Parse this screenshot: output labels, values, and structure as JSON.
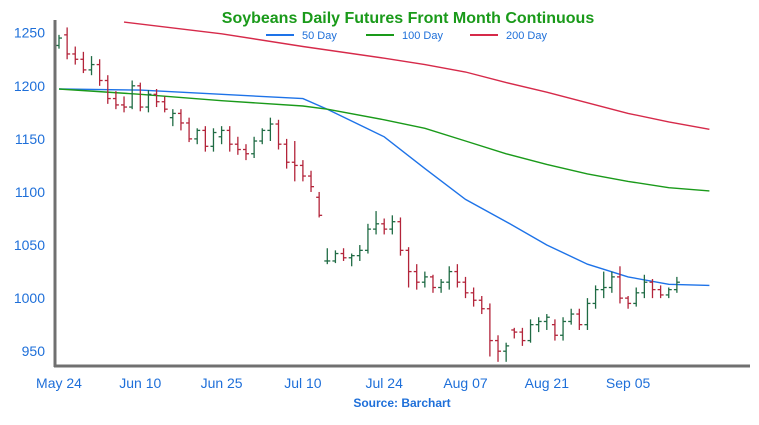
{
  "chart_data": {
    "type": "ohlc",
    "title": "Soybeans Daily Futures Front Month Continuous",
    "source": "Source: Barchart",
    "colors": {
      "title": "#1a9a1a",
      "axis_labels": "#1e6fd9",
      "source": "#1e6fd9",
      "up_bar": "#1f6b44",
      "down_bar": "#b3243a",
      "ma50": "#1e73e8",
      "ma100": "#1a9a1a",
      "ma200": "#d62a4a",
      "axis": "#707070"
    },
    "ylim": [
      937,
      1262
    ],
    "yticks": [
      950,
      1000,
      1050,
      1100,
      1150,
      1200,
      1250
    ],
    "x_range": [
      0,
      82
    ],
    "xticks": [
      {
        "label": "May 24",
        "x": 0
      },
      {
        "label": "Jun 10",
        "x": 10
      },
      {
        "label": "Jun 25",
        "x": 20
      },
      {
        "label": "Jul 10",
        "x": 30
      },
      {
        "label": "Jul 24",
        "x": 40
      },
      {
        "label": "Aug 07",
        "x": 50
      },
      {
        "label": "Aug 21",
        "x": 60
      },
      {
        "label": "Sep 05",
        "x": 70
      }
    ],
    "legend": {
      "placement": "top-center",
      "items": [
        {
          "label": "50 Day",
          "color": "#1e73e8",
          "key": "ma50"
        },
        {
          "label": "100 Day",
          "color": "#1a9a1a",
          "key": "ma100"
        },
        {
          "label": "200 Day",
          "color": "#d62a4a",
          "key": "ma200"
        }
      ]
    },
    "ohlc": [
      [
        1238,
        1248,
        1235,
        1245
      ],
      [
        1248,
        1255,
        1225,
        1230
      ],
      [
        1230,
        1237,
        1220,
        1225
      ],
      [
        1225,
        1232,
        1212,
        1215
      ],
      [
        1215,
        1228,
        1210,
        1220
      ],
      [
        1220,
        1225,
        1200,
        1205
      ],
      [
        1205,
        1210,
        1183,
        1188
      ],
      [
        1188,
        1195,
        1178,
        1182
      ],
      [
        1182,
        1190,
        1175,
        1180
      ],
      [
        1180,
        1205,
        1178,
        1200
      ],
      [
        1200,
        1203,
        1176,
        1180
      ],
      [
        1180,
        1196,
        1175,
        1192
      ],
      [
        1192,
        1197,
        1180,
        1185
      ],
      [
        1185,
        1190,
        1175,
        1178
      ],
      [
        1170,
        1178,
        1162,
        1174
      ],
      [
        1174,
        1178,
        1158,
        1165
      ],
      [
        1165,
        1170,
        1147,
        1150
      ],
      [
        1150,
        1160,
        1145,
        1158
      ],
      [
        1158,
        1162,
        1138,
        1143
      ],
      [
        1143,
        1160,
        1138,
        1156
      ],
      [
        1152,
        1162,
        1145,
        1158
      ],
      [
        1158,
        1162,
        1138,
        1145
      ],
      [
        1145,
        1152,
        1135,
        1140
      ],
      [
        1140,
        1145,
        1130,
        1136
      ],
      [
        1136,
        1152,
        1132,
        1148
      ],
      [
        1148,
        1160,
        1145,
        1158
      ],
      [
        1158,
        1170,
        1148,
        1164
      ],
      [
        1164,
        1168,
        1140,
        1145
      ],
      [
        1145,
        1150,
        1122,
        1128
      ],
      [
        1128,
        1148,
        1110,
        1125
      ],
      [
        1125,
        1130,
        1110,
        1115
      ],
      [
        1115,
        1120,
        1100,
        1105
      ],
      [
        1095,
        1100,
        1076,
        1078
      ],
      [
        1035,
        1047,
        1032,
        1035
      ],
      [
        1035,
        1045,
        1033,
        1042
      ],
      [
        1042,
        1047,
        1035,
        1038
      ],
      [
        1038,
        1042,
        1030,
        1040
      ],
      [
        1040,
        1050,
        1035,
        1045
      ],
      [
        1045,
        1070,
        1042,
        1065
      ],
      [
        1065,
        1082,
        1060,
        1070
      ],
      [
        1070,
        1075,
        1060,
        1065
      ],
      [
        1065,
        1078,
        1060,
        1072
      ],
      [
        1072,
        1076,
        1040,
        1045
      ],
      [
        1045,
        1048,
        1010,
        1025
      ],
      [
        1025,
        1032,
        1008,
        1015
      ],
      [
        1015,
        1025,
        1010,
        1020
      ],
      [
        1020,
        1022,
        1005,
        1010
      ],
      [
        1010,
        1018,
        1005,
        1015
      ],
      [
        1015,
        1030,
        1008,
        1025
      ],
      [
        1025,
        1032,
        1010,
        1015
      ],
      [
        1015,
        1020,
        1000,
        1005
      ],
      [
        1005,
        1010,
        992,
        998
      ],
      [
        998,
        1002,
        985,
        990
      ],
      [
        990,
        995,
        945,
        960
      ],
      [
        960,
        965,
        940,
        950
      ],
      [
        950,
        958,
        940,
        955
      ],
      [
        970,
        972,
        962,
        968
      ],
      [
        968,
        972,
        955,
        960
      ],
      [
        960,
        980,
        958,
        975
      ],
      [
        975,
        982,
        968,
        978
      ],
      [
        978,
        985,
        970,
        982
      ],
      [
        975,
        980,
        960,
        965
      ],
      [
        965,
        982,
        960,
        978
      ],
      [
        978,
        990,
        975,
        985
      ],
      [
        985,
        990,
        970,
        975
      ],
      [
        975,
        1000,
        970,
        995
      ],
      [
        995,
        1012,
        990,
        1008
      ],
      [
        1008,
        1025,
        1000,
        1010
      ],
      [
        1010,
        1025,
        1005,
        1020
      ],
      [
        1020,
        1030,
        995,
        1000
      ],
      [
        1000,
        1002,
        990,
        995
      ],
      [
        995,
        1010,
        992,
        1005
      ],
      [
        1005,
        1022,
        1000,
        1015
      ],
      [
        1015,
        1018,
        1000,
        1008
      ],
      [
        1008,
        1012,
        1000,
        1003
      ],
      [
        1003,
        1010,
        1000,
        1008
      ],
      [
        1008,
        1020,
        1005,
        1015
      ]
    ],
    "series": [
      {
        "name": "50 Day",
        "key": "ma50",
        "x": [
          0,
          10,
          20,
          30,
          33,
          40,
          45,
          50,
          55,
          60,
          65,
          70,
          75,
          80
        ],
        "values": [
          1197,
          1196,
          1192,
          1188,
          1178,
          1152,
          1122,
          1093,
          1072,
          1050,
          1032,
          1020,
          1013,
          1012
        ]
      },
      {
        "name": "100 Day",
        "key": "ma100",
        "x": [
          0,
          10,
          20,
          30,
          33,
          40,
          45,
          50,
          55,
          60,
          65,
          70,
          75,
          80
        ],
        "values": [
          1197,
          1192,
          1186,
          1181,
          1178,
          1168,
          1160,
          1148,
          1136,
          1126,
          1117,
          1110,
          1104,
          1101
        ]
      },
      {
        "name": "200 Day",
        "key": "ma200",
        "x": [
          8,
          20,
          30,
          40,
          45,
          50,
          55,
          60,
          65,
          70,
          75,
          80
        ],
        "values": [
          1260,
          1249,
          1237,
          1226,
          1220,
          1213,
          1203,
          1194,
          1184,
          1174,
          1166,
          1159
        ]
      }
    ]
  }
}
